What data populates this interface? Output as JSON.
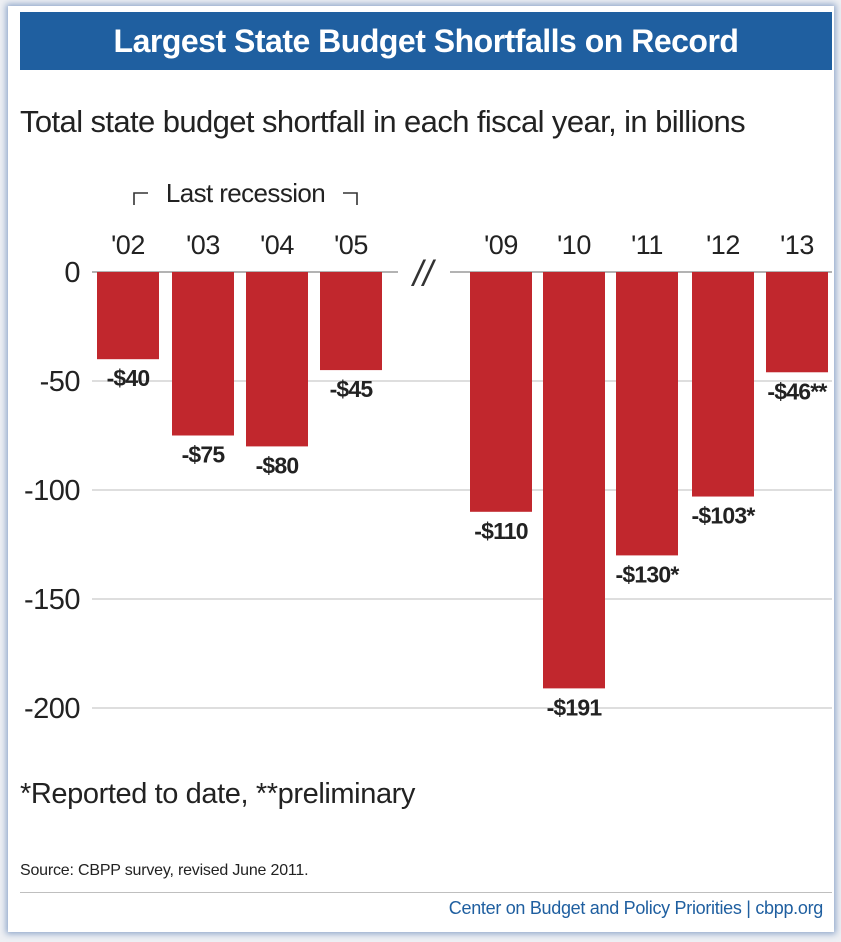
{
  "header": {
    "title": "Largest State Budget Shortfalls on Record",
    "subtitle": "Total state budget shortfall in each fiscal year, in billions"
  },
  "chart_data": {
    "type": "bar",
    "categories": [
      "'02",
      "'03",
      "'04",
      "'05",
      "'09",
      "'10",
      "'11",
      "'12",
      "'13"
    ],
    "values": [
      -40,
      -75,
      -80,
      -45,
      -110,
      -191,
      -130,
      -103,
      -46
    ],
    "data_labels": [
      "-$40",
      "-$75",
      "-$80",
      "-$45",
      "-$110",
      "-$191",
      "-$130*",
      "-$103*",
      "-$46**"
    ],
    "yticks": [
      0,
      -50,
      -100,
      -150,
      -200
    ],
    "ylim": [
      -200,
      0
    ],
    "grid": true,
    "bar_color": "#c1272d",
    "bracket_label": "Last recession",
    "axis_break": "//"
  },
  "notes": {
    "footnote": "*Reported to date, **preliminary",
    "source": "Source: CBPP survey, revised June 2011.",
    "credit": "Center on Budget and Policy Priorities | cbpp.org"
  },
  "colors": {
    "title_bar": "#1f5fa0",
    "bars": "#c1272d",
    "credit_text": "#1f5fa0"
  }
}
